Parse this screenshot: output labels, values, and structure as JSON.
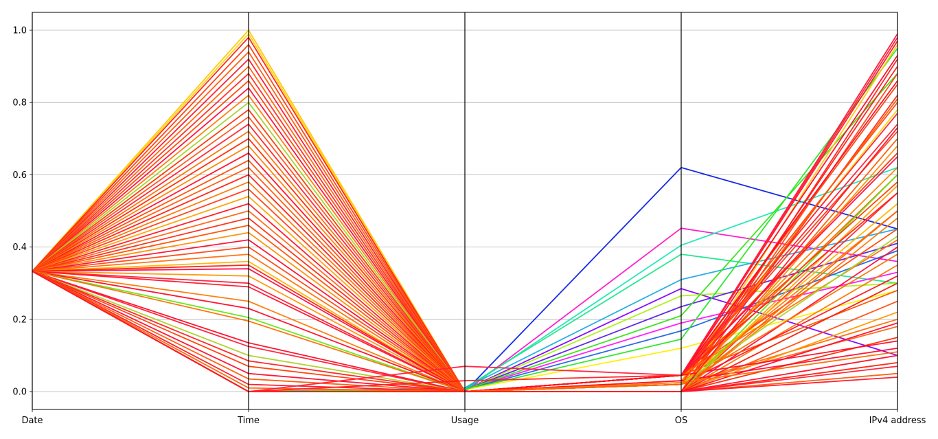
{
  "chart_data": {
    "type": "parallel-coordinates",
    "title": "",
    "axes": [
      "Date",
      "Time",
      "Usage",
      "OS",
      "IPv4 address"
    ],
    "ylim": [
      0.0,
      1.0
    ],
    "yticks": [
      "0.0",
      "0.2",
      "0.4",
      "0.6",
      "0.8",
      "1.0"
    ],
    "grid": true,
    "legend": "none",
    "series": [
      {
        "color": "#0a1fe6",
        "values": [
          0.333,
          0.0,
          0.0,
          0.62,
          0.45
        ]
      },
      {
        "color": "#ff14c8",
        "values": [
          0.333,
          0.0,
          0.0,
          0.452,
          0.36
        ]
      },
      {
        "color": "#1ee6b4",
        "values": [
          0.333,
          0.0,
          0.005,
          0.405,
          0.62
        ]
      },
      {
        "color": "#1ee68c",
        "values": [
          0.333,
          0.0,
          0.01,
          0.38,
          0.3
        ]
      },
      {
        "color": "#1eaae6",
        "values": [
          0.333,
          0.0,
          0.01,
          0.31,
          0.45
        ]
      },
      {
        "color": "#8200ff",
        "values": [
          0.333,
          0.0,
          0.005,
          0.285,
          0.1
        ]
      },
      {
        "color": "#aaf014",
        "values": [
          0.333,
          0.0,
          0.005,
          0.265,
          0.3
        ]
      },
      {
        "color": "#5a1ee6",
        "values": [
          0.333,
          0.0,
          0.005,
          0.235,
          0.41
        ]
      },
      {
        "color": "#ff14ff",
        "values": [
          0.333,
          0.0,
          0.005,
          0.19,
          0.33
        ]
      },
      {
        "color": "#1e64e6",
        "values": [
          0.333,
          0.0,
          0.005,
          0.168,
          0.39
        ]
      },
      {
        "color": "#28e628",
        "values": [
          0.333,
          0.0,
          0.005,
          0.145,
          0.95
        ]
      },
      {
        "color": "#ffee00",
        "values": [
          0.333,
          0.0,
          0.005,
          0.12,
          0.28
        ]
      },
      {
        "color": "#32e614",
        "values": [
          0.333,
          0.0,
          0.005,
          0.21,
          0.88
        ]
      },
      {
        "color": "#ffc800",
        "values": [
          0.333,
          1.0,
          0.0,
          0.02,
          0.96
        ]
      },
      {
        "color": "#ffd200",
        "values": [
          0.333,
          0.99,
          0.0,
          0.03,
          0.78
        ]
      },
      {
        "color": "#ff1e1e",
        "values": [
          0.333,
          0.98,
          0.0,
          0.0,
          0.92
        ]
      },
      {
        "color": "#ff3c0a",
        "values": [
          0.333,
          0.96,
          0.0,
          0.045,
          0.85
        ]
      },
      {
        "color": "#ff5a00",
        "values": [
          0.333,
          0.94,
          0.0,
          0.0,
          0.7
        ]
      },
      {
        "color": "#ff1432",
        "values": [
          0.333,
          0.92,
          0.0,
          0.045,
          0.99
        ]
      },
      {
        "color": "#ff6400",
        "values": [
          0.333,
          0.9,
          0.0,
          0.02,
          0.6
        ]
      },
      {
        "color": "#ff2828",
        "values": [
          0.333,
          0.88,
          0.0,
          0.0,
          0.55
        ]
      },
      {
        "color": "#ff4600",
        "values": [
          0.333,
          0.86,
          0.0,
          0.045,
          0.8
        ]
      },
      {
        "color": "#ff0a3c",
        "values": [
          0.333,
          0.84,
          0.0,
          0.0,
          0.4
        ]
      },
      {
        "color": "#ff7800",
        "values": [
          0.333,
          0.82,
          0.0,
          0.02,
          0.5
        ]
      },
      {
        "color": "#a0d228",
        "values": [
          0.333,
          0.8,
          0.0,
          0.0,
          0.3
        ]
      },
      {
        "color": "#ff3200",
        "values": [
          0.333,
          0.78,
          0.0,
          0.045,
          0.66
        ]
      },
      {
        "color": "#ff5014",
        "values": [
          0.333,
          0.76,
          0.0,
          0.0,
          0.25
        ]
      },
      {
        "color": "#ff1e32",
        "values": [
          0.333,
          0.74,
          0.0,
          0.045,
          0.74
        ]
      },
      {
        "color": "#ff6e00",
        "values": [
          0.333,
          0.72,
          0.0,
          0.02,
          0.2
        ]
      },
      {
        "color": "#ff2800",
        "values": [
          0.333,
          0.7,
          0.0,
          0.0,
          0.15
        ]
      },
      {
        "color": "#ff8200",
        "values": [
          0.333,
          0.68,
          0.0,
          0.03,
          0.62
        ]
      },
      {
        "color": "#ff0a28",
        "values": [
          0.333,
          0.66,
          0.0,
          0.0,
          0.1
        ]
      },
      {
        "color": "#ff4b00",
        "values": [
          0.333,
          0.64,
          0.0,
          0.045,
          0.45
        ]
      },
      {
        "color": "#ff5a0a",
        "values": [
          0.333,
          0.62,
          0.0,
          0.0,
          0.05
        ]
      },
      {
        "color": "#ff1e14",
        "values": [
          0.333,
          0.6,
          0.0,
          0.02,
          0.9
        ]
      },
      {
        "color": "#ff7300",
        "values": [
          0.333,
          0.58,
          0.0,
          0.0,
          0.35
        ]
      },
      {
        "color": "#ff3c14",
        "values": [
          0.333,
          0.56,
          0.0,
          0.045,
          0.72
        ]
      },
      {
        "color": "#ffa000",
        "values": [
          0.333,
          0.54,
          0.0,
          0.0,
          0.57
        ]
      },
      {
        "color": "#ff1428",
        "values": [
          0.333,
          0.52,
          0.0,
          0.045,
          0.97
        ]
      },
      {
        "color": "#ff6414",
        "values": [
          0.333,
          0.5,
          0.0,
          0.02,
          0.18
        ]
      },
      {
        "color": "#ff2814",
        "values": [
          0.333,
          0.48,
          0.0,
          0.0,
          0.82
        ]
      },
      {
        "color": "#ff5000",
        "values": [
          0.333,
          0.46,
          0.0,
          0.045,
          0.28
        ]
      },
      {
        "color": "#ff8c00",
        "values": [
          0.333,
          0.44,
          0.0,
          0.0,
          0.68
        ]
      },
      {
        "color": "#ff0a32",
        "values": [
          0.333,
          0.42,
          0.0,
          0.03,
          0.12
        ]
      },
      {
        "color": "#ff4614",
        "values": [
          0.333,
          0.4,
          0.0,
          0.0,
          0.88
        ]
      },
      {
        "color": "#ff6e0a",
        "values": [
          0.333,
          0.38,
          0.0,
          0.045,
          0.42
        ]
      },
      {
        "color": "#ffb400",
        "values": [
          0.333,
          0.36,
          0.0,
          0.02,
          0.52
        ]
      },
      {
        "color": "#ff1e0a",
        "values": [
          0.333,
          0.35,
          0.0,
          0.0,
          0.08
        ]
      },
      {
        "color": "#ff0a46",
        "values": [
          0.333,
          0.34,
          0.0,
          0.045,
          0.65
        ]
      },
      {
        "color": "#ff9600",
        "values": [
          0.333,
          0.32,
          0.0,
          0.0,
          0.22
        ]
      },
      {
        "color": "#ff1e3c",
        "values": [
          0.333,
          0.3,
          0.0,
          0.045,
          0.77
        ]
      },
      {
        "color": "#ff1428",
        "values": [
          0.333,
          0.29,
          0.0,
          0.02,
          0.32
        ]
      },
      {
        "color": "#ff7800",
        "values": [
          0.333,
          0.25,
          0.0,
          0.0,
          0.48
        ]
      },
      {
        "color": "#ff0a28",
        "values": [
          0.333,
          0.23,
          0.0,
          0.045,
          0.14
        ]
      },
      {
        "color": "#64e614",
        "values": [
          0.333,
          0.205,
          0.0,
          0.0,
          0.6
        ]
      },
      {
        "color": "#ff6e00",
        "values": [
          0.333,
          0.195,
          0.0,
          0.02,
          0.38
        ]
      },
      {
        "color": "#ff0a28",
        "values": [
          0.333,
          0.135,
          0.0,
          0.045,
          0.93
        ]
      },
      {
        "color": "#ff1e32",
        "values": [
          0.333,
          0.125,
          0.0,
          0.0,
          0.07
        ]
      },
      {
        "color": "#aad228",
        "values": [
          0.333,
          0.1,
          0.0,
          0.02,
          0.43
        ]
      },
      {
        "color": "#ff1e1e",
        "values": [
          0.333,
          0.085,
          0.0,
          0.0,
          0.3
        ]
      },
      {
        "color": "#ff3c00",
        "values": [
          0.333,
          0.07,
          0.0,
          0.045,
          0.58
        ]
      },
      {
        "color": "#ff0a32",
        "values": [
          0.333,
          0.05,
          0.0,
          0.0,
          0.19
        ]
      },
      {
        "color": "#ff5a00",
        "values": [
          0.333,
          0.035,
          0.0,
          0.02,
          0.81
        ]
      },
      {
        "color": "#ff1428",
        "values": [
          0.333,
          0.02,
          0.0,
          0.0,
          0.04
        ]
      },
      {
        "color": "#ff6400",
        "values": [
          0.333,
          0.01,
          0.0,
          0.0,
          0.5
        ]
      },
      {
        "color": "#ff0a1e",
        "values": [
          0.333,
          0.0,
          0.0,
          0.045,
          0.86
        ]
      },
      {
        "color": "#ff1e3c",
        "values": [
          0.333,
          0.0,
          0.07,
          0.045,
          0.98
        ]
      },
      {
        "color": "#ff1e1e",
        "values": [
          0.333,
          0.0,
          0.03,
          0.045,
          0.55
        ]
      },
      {
        "color": "#ff6e00",
        "values": [
          0.333,
          0.0,
          0.0,
          0.025,
          0.11
        ]
      },
      {
        "color": "#ff1428",
        "values": [
          0.333,
          0.0,
          0.0,
          0.0,
          0.73
        ]
      }
    ]
  }
}
